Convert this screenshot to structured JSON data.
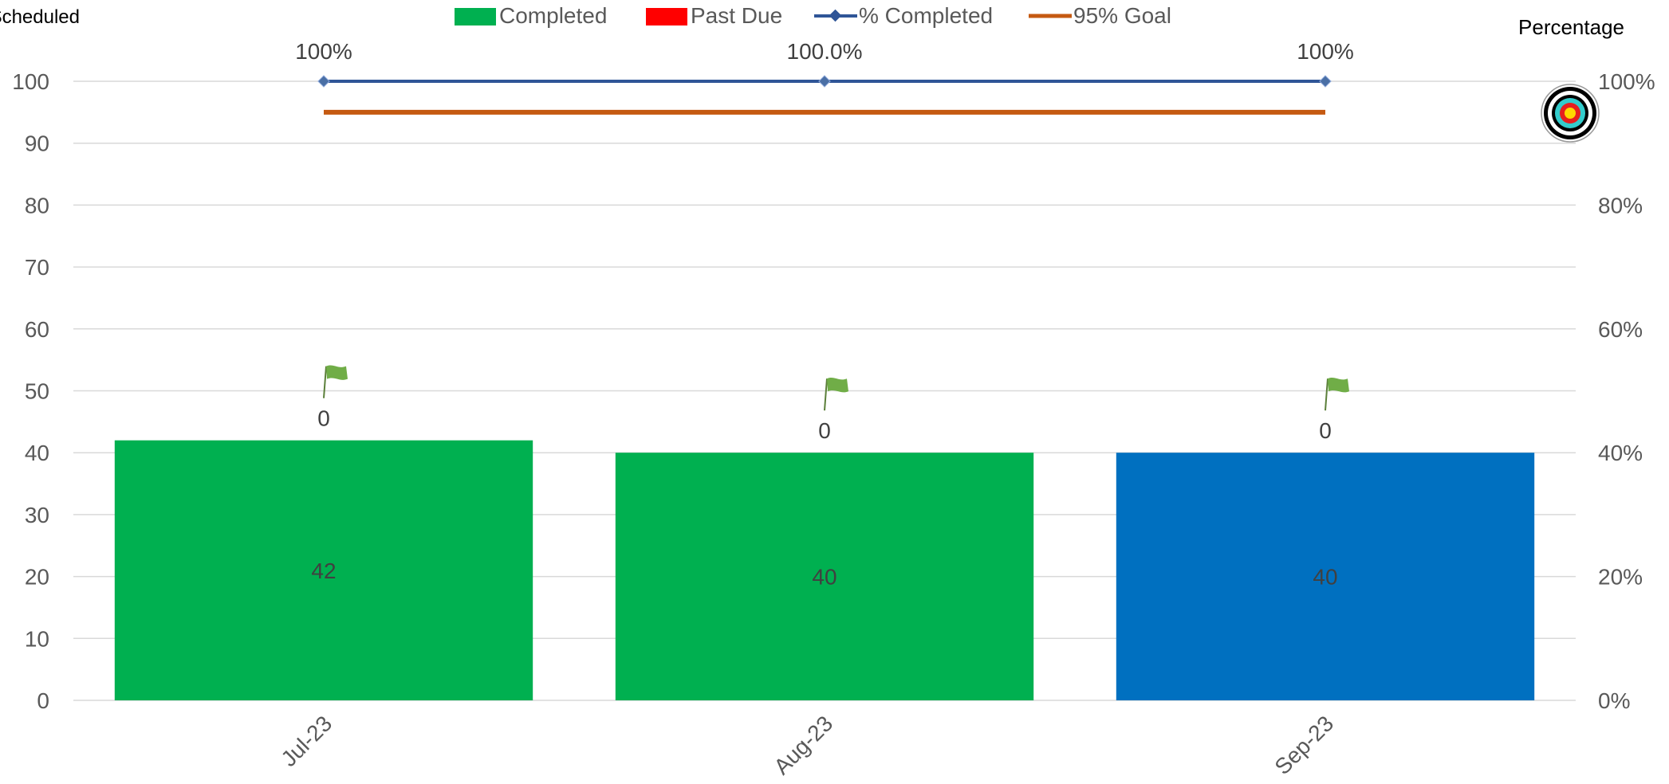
{
  "chart_data": {
    "type": "bar",
    "title": "",
    "y_left_label": "Scheduled",
    "y_right_label": "Percentage",
    "categories": [
      "Jul-23",
      "Aug-23",
      "Sep-23"
    ],
    "series": [
      {
        "name": "Completed",
        "type": "bar",
        "values": [
          42,
          40,
          40
        ],
        "data_labels": [
          "42",
          "40",
          "40"
        ]
      },
      {
        "name": "Past Due",
        "type": "bar",
        "values": [
          0,
          0,
          0
        ],
        "data_labels": [
          "0",
          "0",
          "0"
        ]
      },
      {
        "name": "% Completed",
        "type": "line",
        "axis": "right",
        "values": [
          1.0,
          1.0,
          1.0
        ],
        "data_labels": [
          "100%",
          "100.0%",
          "100%"
        ]
      },
      {
        "name": "95% Goal",
        "type": "line",
        "axis": "right",
        "values": [
          0.95,
          0.95,
          0.95
        ]
      }
    ],
    "bar_colors": [
      "#00B050",
      "#00B050",
      "#0070C0"
    ],
    "y_left_ticks": [
      "0",
      "10",
      "20",
      "30",
      "40",
      "50",
      "60",
      "70",
      "80",
      "90",
      "100"
    ],
    "y_right_ticks": [
      "0%",
      "20%",
      "40%",
      "60%",
      "80%",
      "100%"
    ],
    "ylim_left": [
      0,
      100
    ],
    "ylim_right": [
      0,
      1
    ],
    "grid": true,
    "legend_position": "top",
    "colors": {
      "completed": "#00B050",
      "past_due": "#FF0000",
      "pct_completed": "#2F5597",
      "goal": "#C55A11",
      "flag": "#70AD47",
      "grid": "#D9D9D9",
      "text": "#595959"
    },
    "icons": [
      "flag-icon",
      "target-icon"
    ]
  }
}
